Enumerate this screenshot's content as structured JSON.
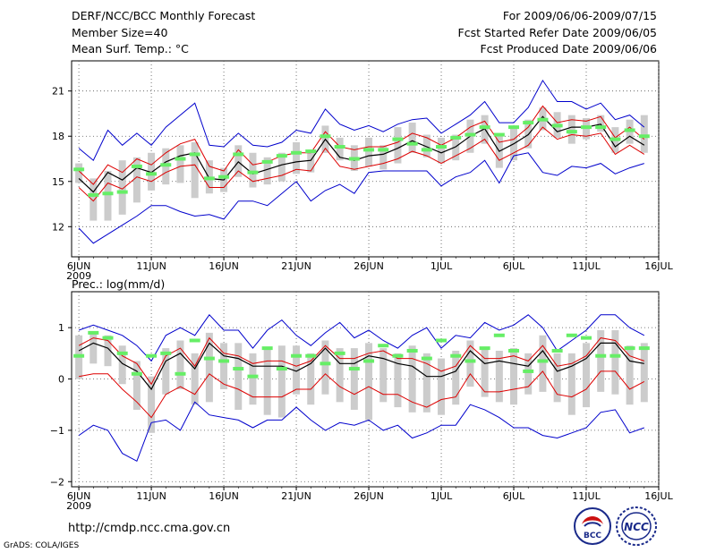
{
  "header": {
    "title": "DERF/NCC/BCC Monthly Forecast",
    "member_size": "Member Size=40",
    "variable": "Mean Surf. Temp.: °C",
    "period": "For 2009/06/06-2009/07/15",
    "start_date": "Fcst Started Refer Date 2009/06/05",
    "produced_date": "Fcst Produced Date 2009/06/06"
  },
  "footer": {
    "url": "http://cmdp.ncc.cma.gov.cn",
    "credit": "GrADS: COLA/IGES",
    "logo_left": "BCC",
    "logo_right": "NCC"
  },
  "colors": {
    "envelope": "#0000cc",
    "spread": "#dd0000",
    "mean": "#000000",
    "box": "#cccccc",
    "marker": "#66ee66",
    "grid": "#555555"
  },
  "chart_data": [
    {
      "type": "line",
      "title": "Mean Surf. Temp.: °C",
      "x_tick_labels": [
        "6JUN",
        "11JUN",
        "16JUN",
        "21JUN",
        "26JUN",
        "1JUL",
        "6JUL",
        "11JUL",
        "16JUL"
      ],
      "x_year_label": "2009",
      "x_tick_days": [
        1,
        6,
        11,
        16,
        21,
        26,
        31,
        36,
        41
      ],
      "xlim": [
        0.5,
        41
      ],
      "ylim": [
        10,
        23
      ],
      "y_ticks": [
        12,
        15,
        18,
        21
      ],
      "grid": true,
      "days": [
        1,
        2,
        3,
        4,
        5,
        6,
        7,
        8,
        9,
        10,
        11,
        12,
        13,
        14,
        15,
        16,
        17,
        18,
        19,
        20,
        21,
        22,
        23,
        24,
        25,
        26,
        27,
        28,
        29,
        30,
        31,
        32,
        33,
        34,
        35,
        36,
        37,
        38,
        39,
        40
      ],
      "series": [
        {
          "name": "max",
          "values": [
            17.2,
            16.4,
            18.4,
            17.4,
            18.2,
            17.4,
            18.6,
            19.4,
            20.2,
            17.4,
            17.3,
            18.2,
            17.4,
            17.3,
            17.6,
            18.4,
            18.2,
            19.8,
            18.8,
            18.4,
            18.7,
            18.3,
            18.8,
            19.1,
            19.2,
            18.2,
            18.8,
            19.4,
            20.3,
            18.9,
            18.9,
            19.9,
            21.7,
            20.3,
            20.3,
            19.8,
            20.2,
            19.1,
            19.4,
            18.6
          ]
        },
        {
          "name": "upper",
          "values": [
            15.7,
            14.8,
            16.1,
            15.6,
            16.5,
            16.1,
            16.9,
            17.5,
            17.8,
            16.0,
            15.7,
            17.1,
            16.1,
            16.3,
            16.7,
            16.9,
            16.9,
            18.3,
            17.3,
            17.1,
            17.3,
            17.3,
            17.6,
            18.2,
            17.9,
            17.4,
            17.9,
            18.6,
            19.0,
            17.6,
            17.8,
            18.6,
            20.0,
            18.9,
            19.1,
            19.0,
            19.3,
            17.9,
            18.6,
            17.8
          ]
        },
        {
          "name": "mean",
          "values": [
            15.2,
            14.3,
            15.6,
            15.1,
            15.9,
            15.6,
            16.3,
            16.7,
            16.9,
            15.2,
            15.1,
            16.3,
            15.5,
            15.8,
            16.1,
            16.3,
            16.4,
            17.8,
            16.6,
            16.4,
            16.7,
            16.8,
            17.2,
            17.7,
            17.3,
            16.9,
            17.3,
            18.0,
            18.5,
            17.0,
            17.5,
            18.1,
            19.3,
            18.3,
            18.6,
            18.6,
            18.8,
            17.3,
            18.0,
            17.4
          ]
        },
        {
          "name": "lower",
          "values": [
            14.6,
            13.7,
            14.9,
            14.5,
            15.3,
            15.0,
            15.6,
            16.0,
            16.1,
            14.6,
            14.6,
            15.7,
            15.0,
            15.2,
            15.4,
            15.8,
            15.7,
            17.2,
            16.0,
            15.8,
            16.0,
            16.2,
            16.5,
            17.0,
            16.7,
            16.2,
            16.7,
            17.2,
            17.8,
            16.4,
            16.9,
            17.4,
            18.6,
            17.8,
            18.1,
            18.0,
            18.2,
            16.8,
            17.4,
            16.8
          ]
        },
        {
          "name": "min",
          "values": [
            11.9,
            10.9,
            11.5,
            12.1,
            12.7,
            13.4,
            13.4,
            13.0,
            12.7,
            12.8,
            12.5,
            13.7,
            13.7,
            13.4,
            14.2,
            15.0,
            13.7,
            14.4,
            14.8,
            14.2,
            15.6,
            15.7,
            15.7,
            15.7,
            15.7,
            14.7,
            15.3,
            15.6,
            16.4,
            14.9,
            16.7,
            16.9,
            15.6,
            15.4,
            16.0,
            15.9,
            16.2,
            15.5,
            15.9,
            16.2
          ]
        },
        {
          "name": "box_high",
          "values": [
            16.2,
            15.2,
            15.7,
            16.4,
            16.6,
            16.9,
            17.2,
            17.4,
            17.6,
            16.4,
            15.9,
            17.4,
            16.9,
            16.6,
            16.9,
            17.6,
            17.1,
            18.7,
            17.9,
            17.4,
            17.9,
            17.4,
            18.6,
            18.9,
            18.1,
            17.9,
            18.1,
            19.1,
            19.4,
            18.1,
            18.6,
            19.1,
            19.9,
            19.6,
            19.4,
            19.2,
            19.4,
            18.6,
            19.1,
            19.4
          ]
        },
        {
          "name": "box_low",
          "values": [
            14.9,
            12.4,
            12.4,
            12.8,
            13.6,
            14.4,
            14.8,
            14.9,
            13.9,
            14.2,
            14.3,
            15.3,
            14.6,
            14.8,
            15.0,
            15.5,
            15.6,
            16.9,
            16.4,
            15.7,
            16.0,
            15.8,
            16.2,
            16.9,
            16.6,
            16.2,
            16.4,
            16.9,
            17.5,
            15.9,
            16.4,
            17.2,
            18.4,
            17.9,
            17.5,
            17.8,
            18.3,
            16.9,
            17.5,
            16.9
          ]
        },
        {
          "name": "median",
          "values": [
            15.8,
            14.1,
            14.2,
            14.3,
            16.0,
            15.5,
            16.1,
            16.5,
            16.8,
            15.2,
            15.3,
            16.8,
            15.6,
            16.3,
            16.7,
            16.9,
            17.0,
            18.0,
            17.3,
            16.5,
            17.1,
            17.1,
            17.8,
            17.5,
            17.1,
            17.3,
            17.9,
            18.1,
            18.6,
            18.1,
            18.6,
            18.9,
            19.1,
            18.7,
            18.3,
            18.6,
            18.6,
            17.8,
            18.4,
            18.0
          ]
        }
      ]
    },
    {
      "type": "line",
      "title": "Prec.: log(mm/d)",
      "x_tick_labels": [
        "6JUN",
        "11JUN",
        "16JUN",
        "21JUN",
        "26JUN",
        "1JUL",
        "6JUL",
        "11JUL",
        "16JUL"
      ],
      "x_year_label": "2009",
      "x_tick_days": [
        1,
        6,
        11,
        16,
        21,
        26,
        31,
        36,
        41
      ],
      "xlim": [
        0.5,
        41
      ],
      "ylim": [
        -2.1,
        1.7
      ],
      "y_ticks": [
        -2,
        -1,
        0,
        1
      ],
      "grid": true,
      "days": [
        1,
        2,
        3,
        4,
        5,
        6,
        7,
        8,
        9,
        10,
        11,
        12,
        13,
        14,
        15,
        16,
        17,
        18,
        19,
        20,
        21,
        22,
        23,
        24,
        25,
        26,
        27,
        28,
        29,
        30,
        31,
        32,
        33,
        34,
        35,
        36,
        37,
        38,
        39,
        40
      ],
      "series": [
        {
          "name": "max",
          "values": [
            0.95,
            1.05,
            0.95,
            0.85,
            0.65,
            0.35,
            0.85,
            1.0,
            0.85,
            1.25,
            0.95,
            0.95,
            0.6,
            0.95,
            1.15,
            0.85,
            0.65,
            0.9,
            1.1,
            0.8,
            0.95,
            0.75,
            0.6,
            0.85,
            1.0,
            0.6,
            0.85,
            0.8,
            1.1,
            0.95,
            1.05,
            1.25,
            1.0,
            0.55,
            0.75,
            0.95,
            1.25,
            1.25,
            1.0,
            0.85
          ]
        },
        {
          "name": "upper",
          "values": [
            0.65,
            0.8,
            0.75,
            0.45,
            0.3,
            -0.1,
            0.45,
            0.6,
            0.25,
            0.8,
            0.5,
            0.45,
            0.3,
            0.35,
            0.35,
            0.25,
            0.35,
            0.65,
            0.4,
            0.4,
            0.5,
            0.55,
            0.4,
            0.4,
            0.3,
            0.15,
            0.25,
            0.65,
            0.4,
            0.4,
            0.45,
            0.35,
            0.65,
            0.25,
            0.3,
            0.45,
            0.8,
            0.75,
            0.45,
            0.35
          ]
        },
        {
          "name": "mean",
          "values": [
            0.55,
            0.7,
            0.6,
            0.3,
            0.15,
            -0.2,
            0.35,
            0.5,
            0.2,
            0.7,
            0.45,
            0.4,
            0.25,
            0.25,
            0.25,
            0.15,
            0.3,
            0.6,
            0.3,
            0.3,
            0.45,
            0.4,
            0.3,
            0.25,
            0.05,
            0.05,
            0.15,
            0.55,
            0.3,
            0.35,
            0.3,
            0.25,
            0.55,
            0.15,
            0.25,
            0.4,
            0.7,
            0.7,
            0.35,
            0.3
          ]
        },
        {
          "name": "lower",
          "values": [
            0.05,
            0.1,
            0.1,
            -0.2,
            -0.45,
            -0.75,
            -0.3,
            -0.15,
            -0.3,
            0.1,
            -0.1,
            -0.2,
            -0.35,
            -0.35,
            -0.35,
            -0.2,
            -0.2,
            0.1,
            -0.15,
            -0.3,
            -0.15,
            -0.3,
            -0.3,
            -0.45,
            -0.55,
            -0.4,
            -0.35,
            0.1,
            -0.25,
            -0.25,
            -0.2,
            -0.15,
            0.15,
            -0.3,
            -0.35,
            -0.2,
            0.15,
            0.15,
            -0.2,
            -0.05
          ]
        },
        {
          "name": "min",
          "values": [
            -1.1,
            -0.9,
            -1.0,
            -1.45,
            -1.6,
            -0.85,
            -0.8,
            -1.0,
            -0.45,
            -0.7,
            -0.75,
            -0.8,
            -0.95,
            -0.8,
            -0.8,
            -0.55,
            -0.8,
            -1.0,
            -0.85,
            -0.9,
            -0.8,
            -1.0,
            -0.9,
            -1.15,
            -1.05,
            -0.9,
            -0.9,
            -0.5,
            -0.6,
            -0.75,
            -0.95,
            -0.95,
            -1.1,
            -1.15,
            -1.05,
            -0.95,
            -0.65,
            -0.6,
            -1.05,
            -0.95
          ]
        },
        {
          "name": "box_high",
          "values": [
            0.85,
            0.9,
            0.85,
            0.65,
            0.35,
            0.05,
            0.6,
            0.75,
            0.5,
            0.9,
            0.7,
            0.7,
            0.5,
            0.6,
            0.65,
            0.65,
            0.5,
            0.75,
            0.6,
            0.6,
            0.7,
            0.6,
            0.5,
            0.65,
            0.5,
            0.4,
            0.55,
            0.75,
            0.6,
            0.55,
            0.6,
            0.5,
            0.85,
            0.5,
            0.5,
            0.7,
            0.95,
            0.95,
            0.65,
            0.7
          ]
        },
        {
          "name": "box_low",
          "values": [
            0.0,
            0.3,
            0.25,
            -0.1,
            -0.6,
            -1.05,
            -0.3,
            -0.2,
            -0.5,
            -0.45,
            -0.2,
            -0.6,
            -0.5,
            -0.7,
            -0.75,
            -0.3,
            -0.5,
            -0.3,
            -0.45,
            -0.6,
            -0.8,
            -0.45,
            -0.55,
            -0.65,
            -0.65,
            -0.7,
            -0.5,
            -0.15,
            -0.35,
            -0.45,
            -0.5,
            -0.3,
            -0.25,
            -0.45,
            -0.7,
            -0.55,
            -0.25,
            -0.3,
            -0.5,
            -0.45
          ]
        },
        {
          "name": "median",
          "values": [
            0.45,
            0.9,
            0.8,
            0.5,
            0.1,
            0.45,
            0.5,
            0.1,
            0.75,
            0.4,
            0.35,
            0.2,
            0.05,
            0.6,
            0.2,
            0.45,
            0.45,
            0.3,
            0.5,
            0.2,
            0.35,
            0.65,
            0.45,
            0.55,
            0.4,
            0.75,
            0.45,
            0.35,
            0.6,
            0.85,
            0.55,
            0.15,
            0.35,
            0.55,
            0.85,
            0.8,
            0.45,
            0.45,
            0.6,
            0.6
          ]
        }
      ]
    }
  ]
}
